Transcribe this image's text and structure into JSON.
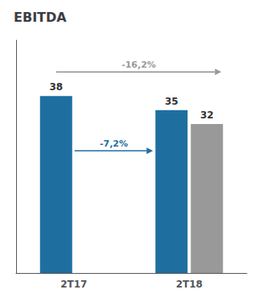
{
  "chart_data": {
    "type": "bar",
    "title": "EBITDA",
    "categories": [
      "2T17",
      "2T18"
    ],
    "series": [
      {
        "color": "#1e6fa0",
        "values": [
          38,
          35
        ]
      },
      {
        "color": "#999999",
        "values": [
          null,
          32
        ]
      }
    ],
    "ylim": [
      0,
      50
    ],
    "data_labels": true,
    "tick_labels": "x",
    "grid": false,
    "annotations": [
      "-7,2%",
      "-16,2%"
    ]
  }
}
